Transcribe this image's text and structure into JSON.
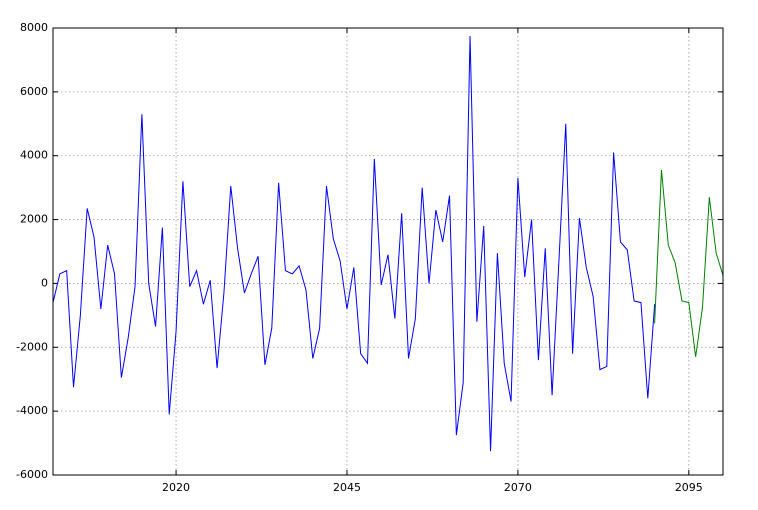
{
  "chart_data": {
    "type": "line",
    "xlim": [
      2002,
      2100
    ],
    "xticks": [
      2020,
      2045,
      2070,
      2095
    ],
    "ylim": [
      -6000,
      8000
    ],
    "yticks": [
      -6000,
      -4000,
      -2000,
      0,
      2000,
      4000,
      6000,
      8000
    ],
    "grid": true,
    "series": [
      {
        "color": "#0000ff",
        "x": [
          2002,
          2003,
          2004,
          2005,
          2006,
          2007,
          2008,
          2009,
          2010,
          2011,
          2012,
          2013,
          2014,
          2015,
          2016,
          2017,
          2018,
          2019,
          2020,
          2021,
          2022,
          2023,
          2024,
          2025,
          2026,
          2027,
          2028,
          2029,
          2030,
          2031,
          2032,
          2033,
          2034,
          2035,
          2036,
          2037,
          2038,
          2039,
          2040,
          2041,
          2042,
          2043,
          2044,
          2045,
          2046,
          2047,
          2048,
          2049,
          2050,
          2051,
          2052,
          2053,
          2054,
          2055,
          2056,
          2057,
          2058,
          2059,
          2060,
          2061,
          2062,
          2063,
          2064,
          2065,
          2066,
          2067,
          2068,
          2069,
          2070,
          2071,
          2072,
          2073,
          2074,
          2075,
          2076,
          2077,
          2078,
          2079,
          2080,
          2081,
          2082,
          2083,
          2084,
          2085,
          2086,
          2087,
          2088,
          2089,
          2090
        ],
        "values": [
          -600,
          300,
          400,
          -3250,
          -1000,
          2350,
          1450,
          -800,
          1200,
          300,
          -2950,
          -1700,
          -100,
          5300,
          0,
          -1350,
          1750,
          -4100,
          -1500,
          3200,
          -100,
          400,
          -650,
          100,
          -2650,
          -300,
          3050,
          1100,
          -300,
          300,
          850,
          -2550,
          -1400,
          3150,
          400,
          300,
          550,
          -200,
          -2350,
          -1400,
          3050,
          1400,
          700,
          -800,
          500,
          -2200,
          -2500,
          3900,
          -50,
          900,
          -1100,
          2200,
          -2350,
          -1100,
          3000,
          0,
          2300,
          1300,
          2750,
          -4750,
          -3100,
          7750,
          -1200,
          1800,
          -5250,
          950,
          -2500,
          -3700,
          3300,
          200,
          2000,
          -2400,
          1100,
          -3500,
          700,
          5000,
          -2200,
          2050,
          500,
          -400,
          -2700,
          -2600,
          4100,
          1300,
          1050,
          -550,
          -600,
          -3600,
          -650
        ]
      },
      {
        "color": "#008000",
        "x": [
          2090,
          2091,
          2092,
          2093,
          2094,
          2095,
          2096,
          2097,
          2098,
          2099,
          2100
        ],
        "values": [
          -1250,
          3550,
          1200,
          650,
          -550,
          -600,
          -2300,
          -750,
          2700,
          950,
          250
        ]
      }
    ]
  }
}
